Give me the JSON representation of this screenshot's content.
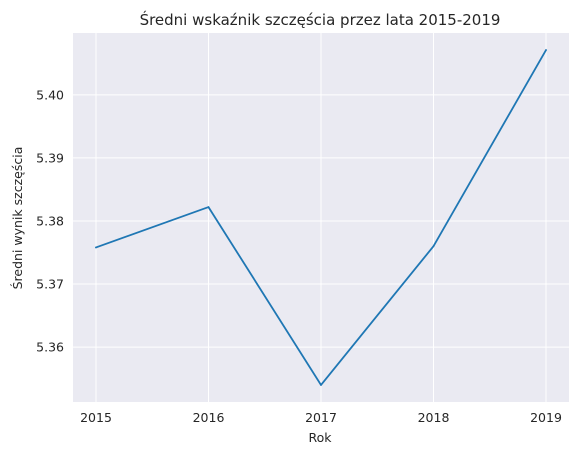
{
  "chart_data": {
    "type": "line",
    "title": "Średni wskaźnik szczęścia przez lata 2015-2019",
    "xlabel": "Rok",
    "ylabel": "Średni wynik szczęścia",
    "x": [
      2015,
      2016,
      2017,
      2018,
      2019
    ],
    "x_tick_labels": [
      "2015",
      "2016",
      "2017",
      "2018",
      "2019"
    ],
    "series": [
      {
        "values": [
          5.3758,
          5.3822,
          5.354,
          5.376,
          5.4071
        ]
      }
    ],
    "ylim": [
      5.3513,
      5.4098
    ],
    "y_ticks": [
      5.36,
      5.37,
      5.38,
      5.39,
      5.4
    ],
    "y_tick_labels": [
      "5.36",
      "5.37",
      "5.38",
      "5.39",
      "5.40"
    ],
    "grid": true,
    "colors": {
      "line": "#1f77b4",
      "plot_background": "#eaeaf2",
      "grid": "#ffffff"
    }
  }
}
